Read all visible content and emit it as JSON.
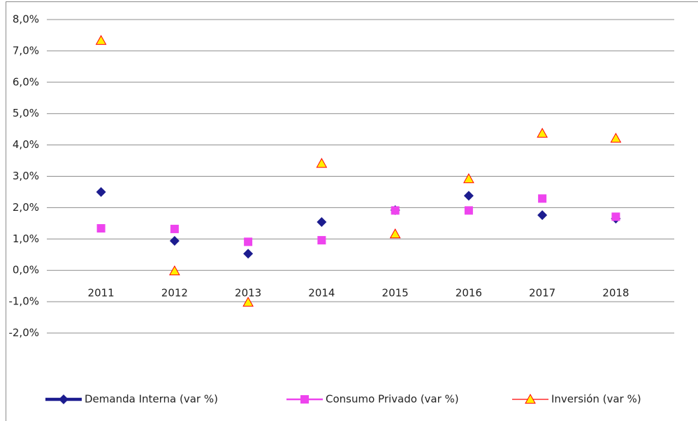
{
  "chart_data": {
    "type": "line",
    "categories": [
      "2011",
      "2012",
      "2013",
      "2014",
      "2015",
      "2016",
      "2017",
      "2018"
    ],
    "series": [
      {
        "name": "Demanda Interna (var %)",
        "color": "#1c1c8f",
        "marker": "diamond",
        "values": [
          2.5,
          0.94,
          0.53,
          1.54,
          1.92,
          2.38,
          1.76,
          1.65
        ]
      },
      {
        "name": "Consumo Privado (var %)",
        "color": "#ee44ee",
        "marker": "square",
        "values": [
          1.34,
          1.32,
          0.91,
          0.96,
          1.91,
          1.91,
          2.29,
          1.71
        ]
      },
      {
        "name": "Inversión (var %)",
        "color": "#ff0000",
        "marker": "triangle",
        "values": [
          7.33,
          -0.02,
          -1.02,
          3.41,
          1.16,
          2.92,
          4.37,
          4.21
        ]
      }
    ],
    "ylim": [
      -2,
      8
    ],
    "yticks": [
      {
        "value": -2,
        "label": "-2,0%"
      },
      {
        "value": -1,
        "label": "-1,0%"
      },
      {
        "value": 0,
        "label": "0,0%"
      },
      {
        "value": 1,
        "label": "1,0%"
      },
      {
        "value": 2,
        "label": "2,0%"
      },
      {
        "value": 3,
        "label": "3,0%"
      },
      {
        "value": 4,
        "label": "4,0%"
      },
      {
        "value": 5,
        "label": "5,0%"
      },
      {
        "value": 6,
        "label": "6,0%"
      },
      {
        "value": 7,
        "label": "7,0%"
      },
      {
        "value": 8,
        "label": "8,0%"
      }
    ],
    "grid": true,
    "legend": "bottom"
  }
}
